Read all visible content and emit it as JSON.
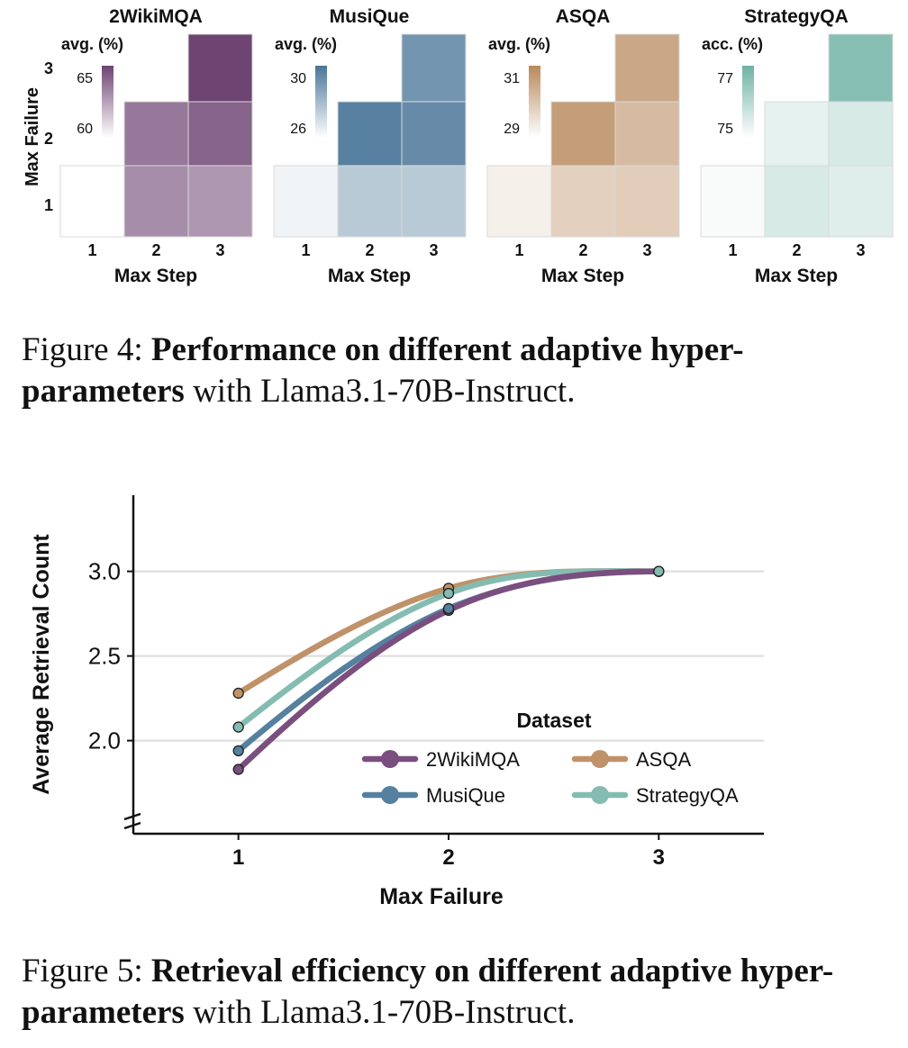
{
  "figure4": {
    "caption": {
      "prefix": "Figure 4: ",
      "bold": "Performance on different adaptive hyper-parameters",
      "suffix": " with Llama3.1-70B-Instruct."
    },
    "ylabel": "Max Failure",
    "xlabel": "Max Step",
    "x_ticks": [
      "1",
      "2",
      "3"
    ],
    "y_ticks": [
      "1",
      "2",
      "3"
    ]
  },
  "figure5": {
    "caption": {
      "prefix": "Figure 5: ",
      "bold": "Retrieval efficiency on different adaptive hyper-parameters",
      "suffix": " with Llama3.1-70B-Instruct."
    }
  },
  "chart_data": [
    {
      "type": "heatmap",
      "title": "2WikiMQA",
      "legend_title": "avg. (%)",
      "colorbar_ticks": [
        "65",
        "60"
      ],
      "color_range": [
        58,
        67
      ],
      "xlabel": "Max Step",
      "ylabel": "Max Failure",
      "cells": [
        {
          "max_step": 1,
          "max_failure": 1,
          "value": 57.5
        },
        {
          "max_step": 2,
          "max_failure": 1,
          "value": 63.5
        },
        {
          "max_step": 3,
          "max_failure": 1,
          "value": 63.0
        },
        {
          "max_step": 2,
          "max_failure": 2,
          "value": 64.5
        },
        {
          "max_step": 3,
          "max_failure": 2,
          "value": 65.5
        },
        {
          "max_step": 3,
          "max_failure": 3,
          "value": 67.5
        }
      ],
      "colors": {
        "low": "#ffffff",
        "high": "#6e4473"
      }
    },
    {
      "type": "heatmap",
      "title": "MusiQue",
      "legend_title": "avg. (%)",
      "colorbar_ticks": [
        "30",
        "26"
      ],
      "color_range": [
        25,
        31.5
      ],
      "xlabel": "Max Step",
      "ylabel": "Max Failure",
      "cells": [
        {
          "max_step": 1,
          "max_failure": 1,
          "value": 25.5
        },
        {
          "max_step": 2,
          "max_failure": 1,
          "value": 27.5
        },
        {
          "max_step": 3,
          "max_failure": 1,
          "value": 27.5
        },
        {
          "max_step": 2,
          "max_failure": 2,
          "value": 31.0
        },
        {
          "max_step": 3,
          "max_failure": 2,
          "value": 30.5
        },
        {
          "max_step": 3,
          "max_failure": 3,
          "value": 30.0
        }
      ],
      "colors": {
        "low": "#ffffff",
        "high": "#4a7598"
      }
    },
    {
      "type": "heatmap",
      "title": "ASQA",
      "legend_title": "avg. (%)",
      "colorbar_ticks": [
        "31",
        "29"
      ],
      "color_range": [
        28,
        32
      ],
      "xlabel": "Max Step",
      "ylabel": "Max Failure",
      "cells": [
        {
          "max_step": 1,
          "max_failure": 1,
          "value": 28.5
        },
        {
          "max_step": 2,
          "max_failure": 1,
          "value": 29.6
        },
        {
          "max_step": 3,
          "max_failure": 1,
          "value": 29.7
        },
        {
          "max_step": 2,
          "max_failure": 2,
          "value": 31.3
        },
        {
          "max_step": 3,
          "max_failure": 2,
          "value": 30.3
        },
        {
          "max_step": 3,
          "max_failure": 3,
          "value": 31.0
        }
      ],
      "colors": {
        "low": "#ffffff",
        "high": "#b8895d"
      }
    },
    {
      "type": "heatmap",
      "title": "StrategyQA",
      "legend_title": "acc. (%)",
      "colorbar_ticks": [
        "77",
        "75"
      ],
      "color_range": [
        74.5,
        78.5
      ],
      "xlabel": "Max Step",
      "ylabel": "Max Failure",
      "cells": [
        {
          "max_step": 1,
          "max_failure": 1,
          "value": 74.7
        },
        {
          "max_step": 2,
          "max_failure": 1,
          "value": 75.6
        },
        {
          "max_step": 3,
          "max_failure": 1,
          "value": 75.4
        },
        {
          "max_step": 2,
          "max_failure": 2,
          "value": 75.2
        },
        {
          "max_step": 3,
          "max_failure": 2,
          "value": 75.6
        },
        {
          "max_step": 3,
          "max_failure": 3,
          "value": 77.8
        }
      ],
      "colors": {
        "low": "#ffffff",
        "high": "#6fb2a4"
      }
    },
    {
      "type": "line",
      "xlabel": "Max Failure",
      "ylabel": "Average Retrieval Count",
      "x": [
        1,
        2,
        3
      ],
      "x_ticks": [
        "1",
        "2",
        "3"
      ],
      "y_ticks": [
        "2.0",
        "2.5",
        "3.0"
      ],
      "xlim": [
        0.5,
        3.5
      ],
      "ylim": [
        1.45,
        3.45
      ],
      "grid": true,
      "legend_title": "Dataset",
      "legend_position": "bottom-right",
      "series": [
        {
          "name": "2WikiMQA",
          "values": [
            1.83,
            2.77,
            3.0
          ],
          "color": "#7a4e7e"
        },
        {
          "name": "MusiQue",
          "values": [
            1.94,
            2.78,
            3.0
          ],
          "color": "#55809f"
        },
        {
          "name": "ASQA",
          "values": [
            2.28,
            2.9,
            3.0
          ],
          "color": "#c0926a"
        },
        {
          "name": "StrategyQA",
          "values": [
            2.08,
            2.87,
            3.0
          ],
          "color": "#85bcb1"
        }
      ]
    }
  ]
}
